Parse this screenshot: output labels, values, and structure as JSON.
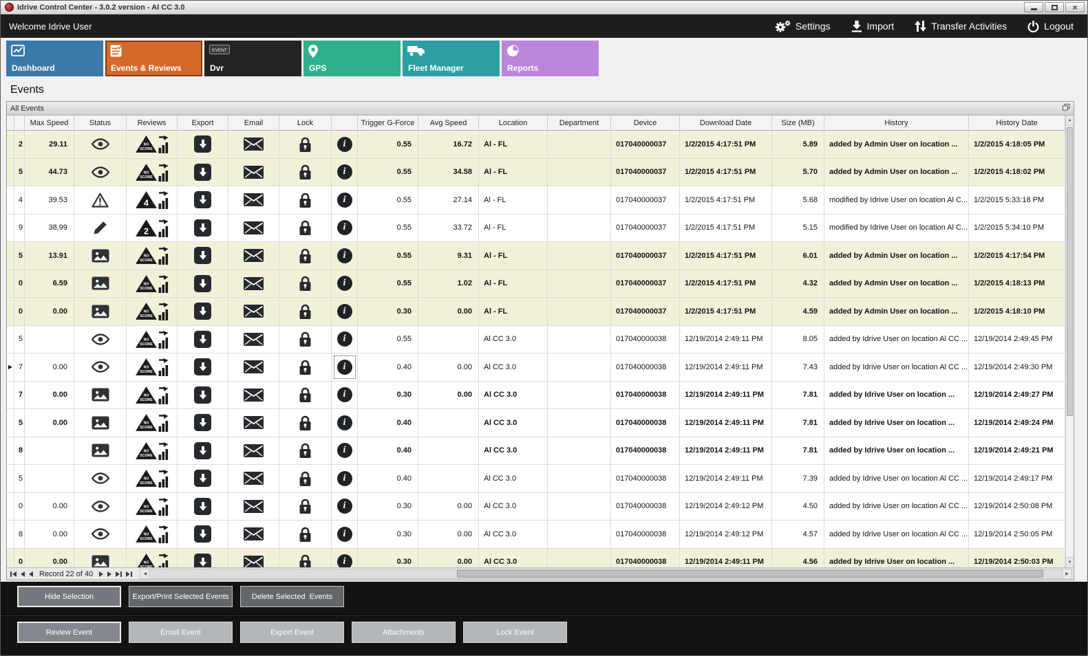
{
  "colors": {
    "accent_orange": "#d4692a",
    "row_highlight": "#f3f0da",
    "appbar_bg": "#1d1d1f",
    "footer_bg": "#131313"
  },
  "window": {
    "title": "Idrive Control Center - 3.0.2 version - Al CC 3.0",
    "minimize_icon": "minimize-icon",
    "maximize_icon": "maximize-icon",
    "close_icon": "close-icon"
  },
  "header": {
    "welcome": "Welcome Idrive User",
    "actions": [
      {
        "label": "Settings",
        "icon": "settings-gears-icon"
      },
      {
        "label": "Import",
        "icon": "import-download-icon"
      },
      {
        "label": "Transfer Activities",
        "icon": "transfer-arrows-icon"
      },
      {
        "label": "Logout",
        "icon": "power-icon"
      }
    ]
  },
  "tabs": [
    {
      "label": "Dashboard",
      "icon": "line-chart-icon",
      "color": "#3a79a8",
      "active": false
    },
    {
      "label": "Events & Reviews",
      "icon": "checklist-icon",
      "color": "#d4692a",
      "active": true
    },
    {
      "label": "Dvr",
      "icon": "event-recorder-icon",
      "color": "#232323",
      "active": false
    },
    {
      "label": "GPS",
      "icon": "map-pin-icon",
      "color": "#2fb08c",
      "active": false
    },
    {
      "label": "Fleet Manager",
      "icon": "truck-icon",
      "color": "#2b9fa3",
      "active": false
    },
    {
      "label": "Reports",
      "icon": "pie-chart-icon",
      "color": "#bb85dc",
      "active": false
    }
  ],
  "page_title": "Events",
  "panel": {
    "title": "All Events",
    "restore_icon": "restore-window-icon"
  },
  "grid": {
    "columns": [
      "Max Speed",
      "Status",
      "Reviews",
      "Export",
      "Email",
      "Lock",
      "",
      "Trigger G-Force",
      "Avg Speed",
      "Location",
      "Department",
      "Device",
      "Download Date",
      "Size (MB)",
      "History",
      "History Date"
    ],
    "rows": [
      {
        "clipped": "2",
        "max_speed": "29.11",
        "status": "eye-icon",
        "review": "NO SCORE",
        "trigger_g_force": "0.55",
        "avg_speed": "16.72",
        "location": "Al - FL",
        "department": "",
        "device": "017040000037",
        "download_date": "1/2/2015 4:17:51 PM",
        "size_mb": "5.89",
        "history": "added by Admin User on location ...",
        "history_date": "1/2/2015 4:18:05 PM",
        "highlight": true,
        "bold": true,
        "current": false
      },
      {
        "clipped": "5",
        "max_speed": "44.73",
        "status": "eye-icon",
        "review": "NO SCORE",
        "trigger_g_force": "0.55",
        "avg_speed": "34.58",
        "location": "Al - FL",
        "department": "",
        "device": "017040000037",
        "download_date": "1/2/2015 4:17:51 PM",
        "size_mb": "5.70",
        "history": "added by Admin User on location ...",
        "history_date": "1/2/2015 4:18:02 PM",
        "highlight": true,
        "bold": true,
        "current": false
      },
      {
        "clipped": "4",
        "max_speed": "39.53",
        "status": "warning-icon",
        "review": "4",
        "trigger_g_force": "0.55",
        "avg_speed": "27.14",
        "location": "Al - FL",
        "department": "",
        "device": "017040000037",
        "download_date": "1/2/2015 4:17:51 PM",
        "size_mb": "5.68",
        "history": "modified by Idrive User on location Al C...",
        "history_date": "1/2/2015 5:33:18 PM",
        "highlight": false,
        "bold": false,
        "current": false
      },
      {
        "clipped": "9",
        "max_speed": "38.99",
        "status": "pencil-icon",
        "review": "2",
        "trigger_g_force": "0.55",
        "avg_speed": "33.72",
        "location": "Al - FL",
        "department": "",
        "device": "017040000037",
        "download_date": "1/2/2015 4:17:51 PM",
        "size_mb": "5.15",
        "history": "modified by Idrive User on location Al C...",
        "history_date": "1/2/2015 5:34:10 PM",
        "highlight": false,
        "bold": false,
        "current": false
      },
      {
        "clipped": "5",
        "max_speed": "13.91",
        "status": "image-icon",
        "review": "NO SCORE",
        "trigger_g_force": "0.55",
        "avg_speed": "9.31",
        "location": "Al - FL",
        "department": "",
        "device": "017040000037",
        "download_date": "1/2/2015 4:17:51 PM",
        "size_mb": "6.01",
        "history": "added by Admin User on location ...",
        "history_date": "1/2/2015 4:17:54 PM",
        "highlight": true,
        "bold": true,
        "current": false
      },
      {
        "clipped": "0",
        "max_speed": "6.59",
        "status": "image-icon",
        "review": "NO SCORE",
        "trigger_g_force": "0.55",
        "avg_speed": "1.02",
        "location": "Al - FL",
        "department": "",
        "device": "017040000037",
        "download_date": "1/2/2015 4:17:51 PM",
        "size_mb": "4.32",
        "history": "added by Admin User on location ...",
        "history_date": "1/2/2015 4:18:13 PM",
        "highlight": true,
        "bold": true,
        "current": false
      },
      {
        "clipped": "0",
        "max_speed": "0.00",
        "status": "image-icon",
        "review": "NO SCORE",
        "trigger_g_force": "0.30",
        "avg_speed": "0.00",
        "location": "Al - FL",
        "department": "",
        "device": "017040000037",
        "download_date": "1/2/2015 4:17:51 PM",
        "size_mb": "4.59",
        "history": "added by Admin User on location ...",
        "history_date": "1/2/2015 4:18:10 PM",
        "highlight": true,
        "bold": true,
        "current": false
      },
      {
        "clipped": "5",
        "max_speed": "",
        "status": "eye-icon",
        "review": "NO SCORE",
        "trigger_g_force": "0.55",
        "avg_speed": "",
        "location": "Al CC 3.0",
        "department": "",
        "device": "017040000038",
        "download_date": "12/19/2014 2:49:11 PM",
        "size_mb": "8.05",
        "history": "added by Idrive User on location Al CC ...",
        "history_date": "12/19/2014 2:49:45 PM",
        "highlight": false,
        "bold": false,
        "current": false
      },
      {
        "clipped": "7",
        "max_speed": "0.00",
        "status": "eye-icon",
        "review": "NO SCORE",
        "trigger_g_force": "0.40",
        "avg_speed": "0.00",
        "location": "Al CC 3.0",
        "department": "",
        "device": "017040000038",
        "download_date": "12/19/2014 2:49:11 PM",
        "size_mb": "7.43",
        "history": "added by Idrive User on location Al CC ...",
        "history_date": "12/19/2014 2:49:30 PM",
        "highlight": false,
        "bold": false,
        "current": true
      },
      {
        "clipped": "7",
        "max_speed": "0.00",
        "status": "image-icon",
        "review": "NO SCORE",
        "trigger_g_force": "0.30",
        "avg_speed": "0.00",
        "location": "Al CC 3.0",
        "department": "",
        "device": "017040000038",
        "download_date": "12/19/2014 2:49:11 PM",
        "size_mb": "7.81",
        "history": "added by Idrive User on location ...",
        "history_date": "12/19/2014 2:49:27 PM",
        "highlight": false,
        "bold": true,
        "current": false
      },
      {
        "clipped": "5",
        "max_speed": "0.00",
        "status": "image-icon",
        "review": "NO SCORE",
        "trigger_g_force": "0.40",
        "avg_speed": "",
        "location": "Al CC 3.0",
        "department": "",
        "device": "017040000038",
        "download_date": "12/19/2014 2:49:11 PM",
        "size_mb": "7.81",
        "history": "added by Idrive User on location ...",
        "history_date": "12/19/2014 2:49:24 PM",
        "highlight": false,
        "bold": true,
        "current": false
      },
      {
        "clipped": "8",
        "max_speed": "",
        "status": "image-icon",
        "review": "NO SCORE",
        "trigger_g_force": "0.40",
        "avg_speed": "",
        "location": "Al CC 3.0",
        "department": "",
        "device": "017040000038",
        "download_date": "12/19/2014 2:49:11 PM",
        "size_mb": "7.81",
        "history": "added by Idrive User on location ...",
        "history_date": "12/19/2014 2:49:21 PM",
        "highlight": false,
        "bold": true,
        "current": false
      },
      {
        "clipped": "5",
        "max_speed": "",
        "status": "eye-icon",
        "review": "NO SCORE",
        "trigger_g_force": "0.40",
        "avg_speed": "",
        "location": "Al CC 3.0",
        "department": "",
        "device": "017040000038",
        "download_date": "12/19/2014 2:49:11 PM",
        "size_mb": "7.39",
        "history": "added by Idrive User on location Al CC ...",
        "history_date": "12/19/2014 2:49:17 PM",
        "highlight": false,
        "bold": false,
        "current": false
      },
      {
        "clipped": "0",
        "max_speed": "0.00",
        "status": "eye-icon",
        "review": "NO SCORE",
        "trigger_g_force": "0.30",
        "avg_speed": "0.00",
        "location": "Al CC 3.0",
        "department": "",
        "device": "017040000038",
        "download_date": "12/19/2014 2:49:12 PM",
        "size_mb": "4.50",
        "history": "added by Idrive User on location Al CC ...",
        "history_date": "12/19/2014 2:50:08 PM",
        "highlight": false,
        "bold": false,
        "current": false
      },
      {
        "clipped": "8",
        "max_speed": "0.00",
        "status": "eye-icon",
        "review": "NO SCORE",
        "trigger_g_force": "0.30",
        "avg_speed": "0.00",
        "location": "Al CC 3.0",
        "department": "",
        "device": "017040000038",
        "download_date": "12/19/2014 2:49:12 PM",
        "size_mb": "4.57",
        "history": "added by Idrive User on location Al CC ...",
        "history_date": "12/19/2014 2:50:05 PM",
        "highlight": false,
        "bold": false,
        "current": false
      },
      {
        "clipped": "0",
        "max_speed": "0.00",
        "status": "image-icon",
        "review": "NO SCORE",
        "trigger_g_force": "0.30",
        "avg_speed": "0.00",
        "location": "Al CC 3.0",
        "department": "",
        "device": "017040000038",
        "download_date": "12/19/2014 2:49:11 PM",
        "size_mb": "4.56",
        "history": "added by Idrive User on location ...",
        "history_date": "12/19/2014 2:50:03 PM",
        "highlight": true,
        "bold": true,
        "current": false
      }
    ]
  },
  "navigator": {
    "record_text": "Record 22 of 40",
    "buttons": [
      "first-record",
      "prev-page",
      "prev-record",
      "next-record",
      "next-page",
      "last-record",
      "last-page"
    ]
  },
  "footer": {
    "row1": [
      {
        "label": "Hide Selection",
        "focused": true
      },
      {
        "label": "Export/Print Selected Events",
        "focused": false
      },
      {
        "label": "Delete Selected  Events",
        "focused": false
      }
    ],
    "row2": [
      {
        "label": "Review Event",
        "focused": true
      },
      {
        "label": "Email Event",
        "focused": false
      },
      {
        "label": "Export Event",
        "focused": false
      },
      {
        "label": "Attachments",
        "focused": false
      },
      {
        "label": "Lock Event",
        "focused": false
      }
    ]
  }
}
